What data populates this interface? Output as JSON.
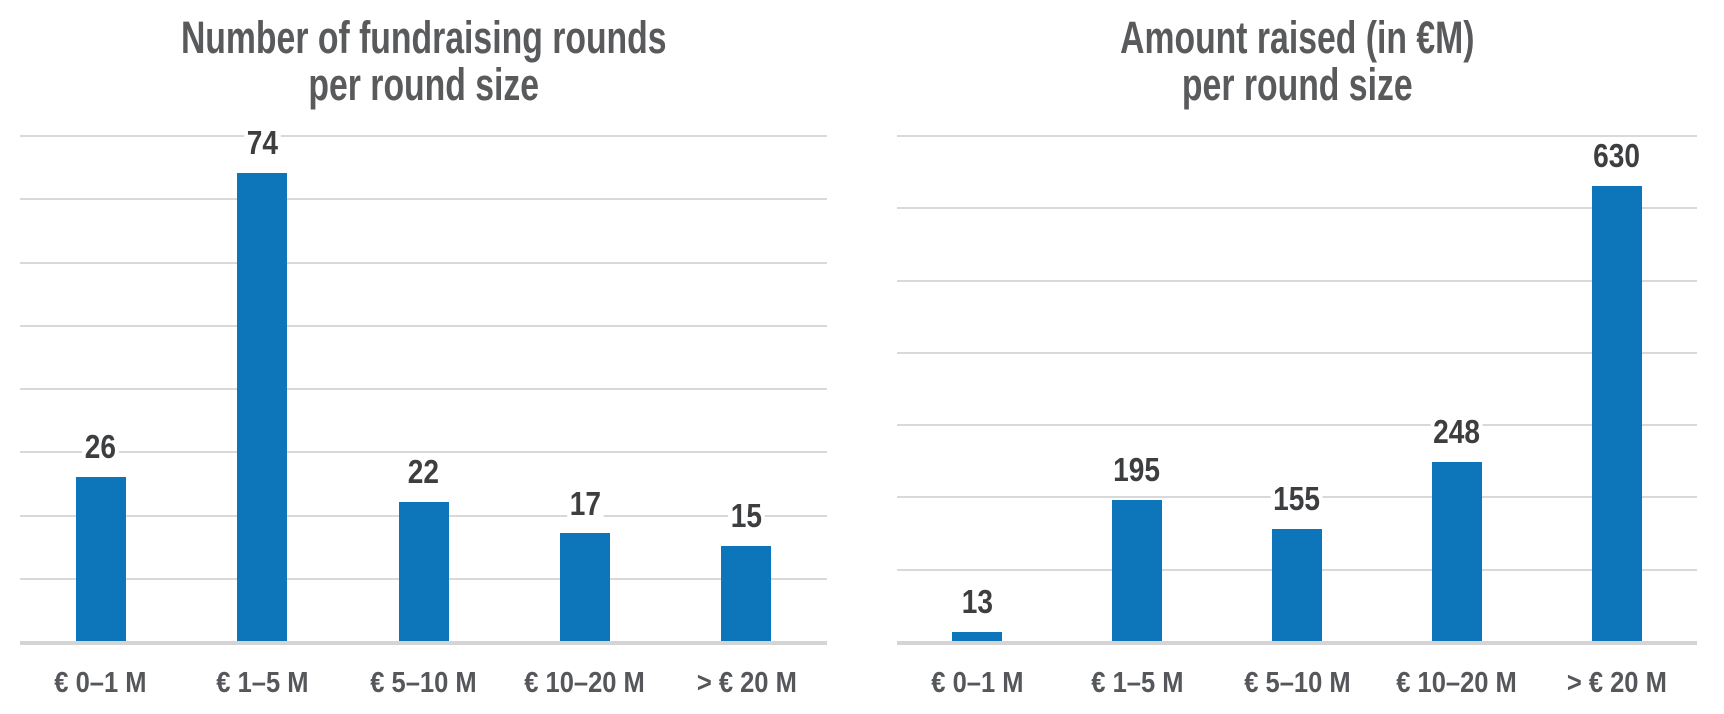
{
  "page": {
    "background": "#ffffff"
  },
  "chart_data": [
    {
      "type": "bar",
      "title": "Number of fundraising rounds\nper round size",
      "categories": [
        "€ 0–1 M",
        "€ 1–5 M",
        "€ 5–10 M",
        "€ 10–20 M",
        "> € 20 M"
      ],
      "values": [
        26,
        74,
        22,
        17,
        15
      ],
      "value_labels": [
        "26",
        "74",
        "22",
        "17",
        "15"
      ],
      "xlabel": "",
      "ylabel": "",
      "ylim": [
        0,
        80
      ],
      "ytick_step": 10,
      "grid": true,
      "legend": "none",
      "bar_color": "#0d76bb"
    },
    {
      "type": "bar",
      "title": "Amount raised (in €M)\nper round size",
      "categories": [
        "€ 0–1 M",
        "€ 1–5 M",
        "€ 5–10 M",
        "€ 10–20 M",
        "> € 20 M"
      ],
      "values": [
        13,
        195,
        155,
        248,
        630
      ],
      "value_labels": [
        "13",
        "195",
        "155",
        "248",
        "630"
      ],
      "xlabel": "",
      "ylabel": "",
      "ylim": [
        0,
        700
      ],
      "ytick_step": 100,
      "grid": true,
      "legend": "none",
      "bar_color": "#0d76bb"
    }
  ],
  "colors": {
    "bar": "#0d76bb",
    "gridline": "#d9d9d9",
    "axis_line": "#d4d4d4",
    "title_text": "#595a5c",
    "value_text": "#3d3e40",
    "category_text": "#55575a"
  }
}
